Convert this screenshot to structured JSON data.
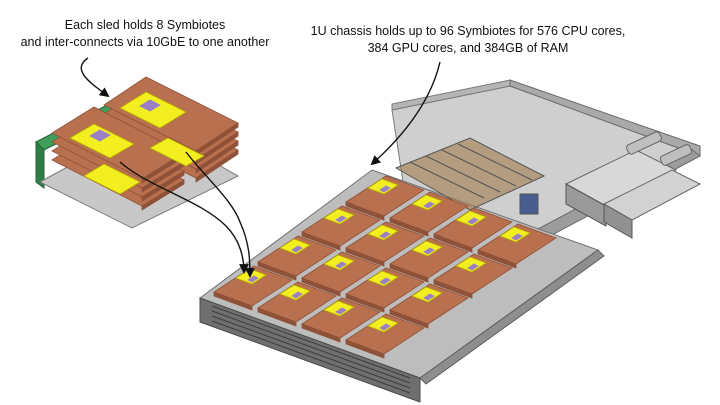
{
  "captions": {
    "sled": {
      "line1": "Each sled holds 8 Symbiotes",
      "line2": "and inter-connects via 10GbE to one another"
    },
    "chassis": {
      "line1": "1U chassis holds up to 96 Symbiotes for 576 CPU cores,",
      "line2": "384 GPU cores, and 384GB of RAM"
    }
  },
  "colors": {
    "board": "#b8704f",
    "board_dark": "#8f5238",
    "heatsink": "#f3ee1f",
    "heatsink_label": "#9a7fc7",
    "pcb": "#3f9f5a",
    "chassis": "#c9c9c9",
    "chassis_dark": "#8c8c8c",
    "rail": "#6b6b6b"
  },
  "icons": {
    "sled_arrow": "curved-arrow-icon",
    "chassis_arrow": "curved-arrow-icon"
  }
}
